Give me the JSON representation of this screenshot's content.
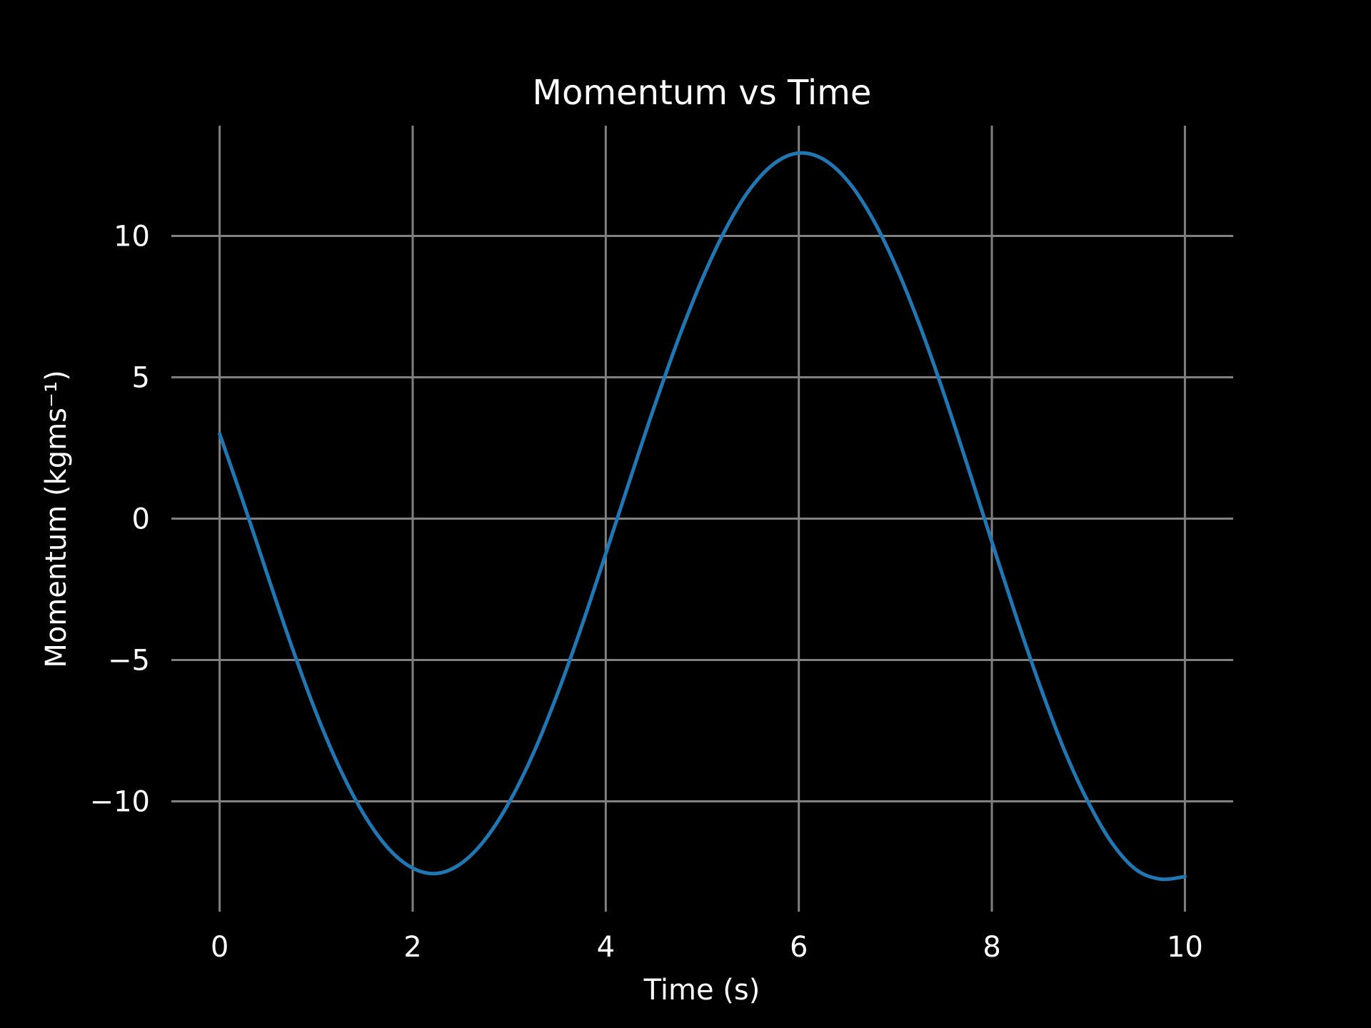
{
  "chart_data": {
    "type": "line",
    "title": "Momentum vs Time",
    "xlabel": "Time (s)",
    "ylabel": "Momentum (kgms⁻¹)",
    "xlim": [
      -0.5,
      10.5
    ],
    "ylim": [
      -13.9,
      13.9
    ],
    "x_ticks": [
      0,
      2,
      4,
      6,
      8,
      10
    ],
    "x_tick_labels": [
      "0",
      "2",
      "4",
      "6",
      "8",
      "10"
    ],
    "y_ticks": [
      -10,
      -5,
      0,
      5,
      10
    ],
    "y_tick_labels": [
      "−10",
      "−5",
      "0",
      "5",
      "10"
    ],
    "grid": true,
    "background_color": "#000000",
    "grid_color": "#808080",
    "text_color": "#ffffff",
    "series": [
      {
        "color": "#1f77b4",
        "x": [
          0,
          0.25,
          0.5,
          0.75,
          1,
          1.25,
          1.5,
          1.75,
          2,
          2.25,
          2.5,
          2.75,
          3,
          3.25,
          3.5,
          3.75,
          4,
          4.25,
          4.5,
          4.75,
          5,
          5.25,
          5.5,
          5.75,
          6,
          6.25,
          6.5,
          6.75,
          7,
          7.25,
          7.5,
          7.75,
          8,
          8.25,
          8.5,
          8.75,
          9,
          9.25,
          9.5,
          9.75,
          10
        ],
        "y": [
          3.0,
          0.53,
          -2.04,
          -4.55,
          -6.87,
          -8.87,
          -10.49,
          -11.67,
          -12.36,
          -12.55,
          -12.2,
          -11.35,
          -10.03,
          -8.3,
          -6.19,
          -3.81,
          -1.24,
          1.37,
          3.93,
          6.33,
          8.48,
          10.29,
          11.68,
          12.57,
          12.93,
          12.72,
          11.97,
          10.7,
          8.97,
          6.86,
          4.45,
          1.85,
          -0.82,
          -3.45,
          -5.93,
          -8.18,
          -10.04,
          -11.5,
          -12.43,
          -12.75,
          -12.66
        ]
      }
    ]
  }
}
